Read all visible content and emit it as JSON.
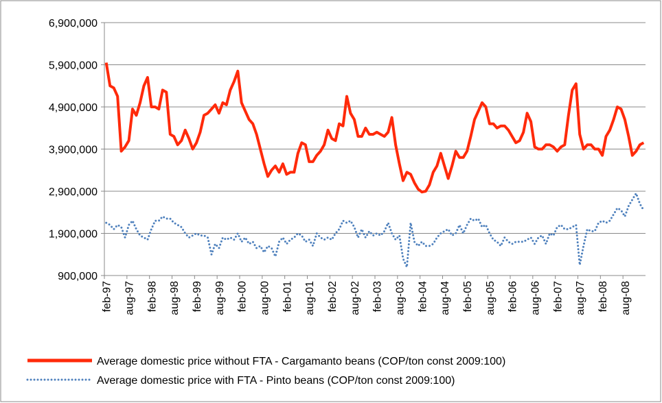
{
  "chart_data": {
    "type": "line",
    "categories": [
      "feb-97",
      null,
      null,
      null,
      null,
      null,
      "aug-97",
      null,
      null,
      null,
      null,
      null,
      "feb-98",
      null,
      null,
      null,
      null,
      null,
      "aug-98",
      null,
      null,
      null,
      null,
      null,
      "feb-99",
      null,
      null,
      null,
      null,
      null,
      "aug-99",
      null,
      null,
      null,
      null,
      null,
      "feb-00",
      null,
      null,
      null,
      null,
      null,
      "aug-00",
      null,
      null,
      null,
      null,
      null,
      "feb-01",
      null,
      null,
      null,
      null,
      null,
      "aug-01",
      null,
      null,
      null,
      null,
      null,
      "feb-02",
      null,
      null,
      null,
      null,
      null,
      "aug-02",
      null,
      null,
      null,
      null,
      null,
      "feb-03",
      null,
      null,
      null,
      null,
      null,
      "aug-03",
      null,
      null,
      null,
      null,
      null,
      "feb-04",
      null,
      null,
      null,
      null,
      null,
      "aug-04",
      null,
      null,
      null,
      null,
      null,
      "feb-05",
      null,
      null,
      null,
      null,
      null,
      "aug-05",
      null,
      null,
      null,
      null,
      null,
      "feb-06",
      null,
      null,
      null,
      null,
      null,
      "aug-06",
      null,
      null,
      null,
      null,
      null,
      "feb-07",
      null,
      null,
      null,
      null,
      null,
      "aug-07",
      null,
      null,
      null,
      null,
      null,
      "feb-08",
      null,
      null,
      null,
      null,
      null,
      "aug-08",
      null,
      null,
      null,
      null,
      null
    ],
    "series": [
      {
        "name": "Average domestic price without FTA  -  Cargamanto beans (COP/ton const 2009:100)",
        "color": "#ff2a0a",
        "style": "solid",
        "values": [
          5950000,
          5400000,
          5350000,
          5150000,
          3850000,
          3950000,
          4100000,
          4850000,
          4700000,
          5000000,
          5400000,
          5600000,
          4900000,
          4900000,
          4850000,
          5300000,
          5250000,
          4250000,
          4200000,
          4000000,
          4100000,
          4350000,
          4150000,
          3900000,
          4050000,
          4300000,
          4700000,
          4750000,
          4850000,
          4950000,
          4750000,
          5000000,
          4950000,
          5300000,
          5500000,
          5750000,
          5000000,
          4800000,
          4600000,
          4500000,
          4250000,
          3900000,
          3550000,
          3250000,
          3400000,
          3500000,
          3350000,
          3550000,
          3300000,
          3350000,
          3350000,
          3800000,
          4050000,
          4000000,
          3600000,
          3600000,
          3750000,
          3850000,
          4000000,
          4350000,
          4150000,
          4100000,
          4500000,
          4450000,
          5150000,
          4750000,
          4600000,
          4200000,
          4200000,
          4400000,
          4250000,
          4250000,
          4300000,
          4250000,
          4200000,
          4300000,
          4650000,
          4000000,
          3550000,
          3150000,
          3350000,
          3300000,
          3100000,
          2950000,
          2880000,
          2900000,
          3050000,
          3350000,
          3500000,
          3800000,
          3500000,
          3200000,
          3500000,
          3850000,
          3700000,
          3700000,
          3850000,
          4200000,
          4600000,
          4800000,
          5000000,
          4900000,
          4500000,
          4500000,
          4400000,
          4450000,
          4450000,
          4350000,
          4200000,
          4050000,
          4100000,
          4300000,
          4750000,
          4550000,
          3950000,
          3900000,
          3900000,
          4000000,
          4000000,
          3950000,
          3850000,
          3950000,
          4000000,
          4700000,
          5300000,
          5450000,
          4250000,
          3900000,
          4000000,
          4000000,
          3900000,
          3900000,
          3750000,
          4200000,
          4350000,
          4600000,
          4900000,
          4850000,
          4600000,
          4200000,
          3750000,
          3850000,
          4000000,
          4050000
        ]
      },
      {
        "name": "Average domestic price with FTA - Pinto beans (COP/ton const 2009:100)",
        "color": "#4f81bd",
        "style": "dotted",
        "values": [
          2150000,
          2100000,
          2000000,
          2100000,
          2050000,
          1800000,
          2100000,
          2200000,
          2000000,
          1850000,
          1800000,
          1750000,
          2000000,
          2200000,
          2200000,
          2300000,
          2250000,
          2250000,
          2150000,
          2100000,
          2050000,
          1900000,
          1800000,
          1850000,
          1900000,
          1850000,
          1850000,
          1800000,
          1400000,
          1650000,
          1550000,
          1800000,
          1750000,
          1800000,
          1750000,
          1900000,
          1700000,
          1800000,
          1650000,
          1700000,
          1550000,
          1600000,
          1450000,
          1600000,
          1550000,
          1350000,
          1700000,
          1800000,
          1650000,
          1750000,
          1800000,
          1900000,
          1850000,
          1700000,
          1750000,
          1600000,
          1900000,
          1800000,
          1750000,
          1800000,
          1750000,
          1900000,
          2000000,
          2200000,
          2150000,
          2200000,
          2050000,
          1800000,
          2000000,
          1800000,
          1950000,
          1850000,
          1900000,
          1850000,
          1950000,
          2150000,
          1900000,
          1750000,
          1850000,
          1300000,
          1100000,
          2150000,
          1700000,
          1600000,
          1700000,
          1600000,
          1600000,
          1650000,
          1800000,
          1900000,
          1950000,
          2000000,
          1850000,
          1900000,
          2100000,
          1900000,
          2100000,
          2250000,
          2200000,
          2250000,
          2050000,
          2100000,
          1900000,
          1750000,
          1700000,
          1600000,
          1800000,
          1700000,
          1650000,
          1700000,
          1700000,
          1700000,
          1750000,
          1800000,
          1650000,
          1800000,
          1850000,
          1650000,
          1900000,
          1850000,
          2050000,
          2100000,
          2000000,
          2000000,
          2050000,
          2100000,
          1150000,
          1600000,
          2000000,
          1950000,
          1950000,
          2150000,
          2200000,
          2150000,
          2200000,
          2350000,
          2500000,
          2450000,
          2300000,
          2550000,
          2700000,
          2850000,
          2600000,
          2450000
        ]
      }
    ],
    "ylim": [
      900000,
      6900000
    ],
    "yticks": [
      {
        "value": 900000,
        "label": "900,000"
      },
      {
        "value": 1900000,
        "label": "1,900,000"
      },
      {
        "value": 2900000,
        "label": "2,900,000"
      },
      {
        "value": 3900000,
        "label": "3,900,000"
      },
      {
        "value": 4900000,
        "label": "4,900,000"
      },
      {
        "value": 5900000,
        "label": "5,900,000"
      },
      {
        "value": 6900000,
        "label": "6,900,000"
      }
    ],
    "grid": true,
    "legend": "bottom"
  }
}
